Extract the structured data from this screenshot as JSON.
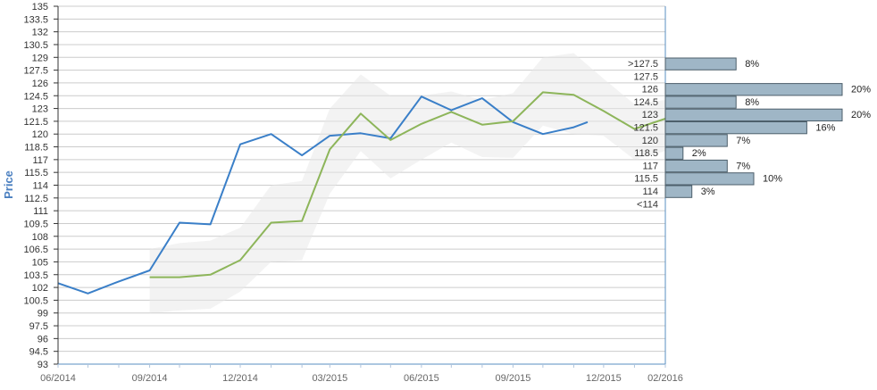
{
  "chart_data": {
    "type": "line",
    "title": "",
    "xlabel": "",
    "ylabel": "Price",
    "ylim": [
      93,
      135
    ],
    "y_ticks": [
      93,
      94.5,
      96,
      97.5,
      99,
      100.5,
      102,
      103.5,
      105,
      106.5,
      108,
      109.5,
      111,
      112.5,
      114,
      115.5,
      117,
      118.5,
      120,
      121.5,
      123,
      124.5,
      126,
      127.5,
      129,
      130.5,
      132,
      133.5,
      135
    ],
    "x_tick_labels": [
      "06/2014",
      "09/2014",
      "12/2014",
      "03/2015",
      "06/2015",
      "09/2015",
      "12/2015",
      "02/2016"
    ],
    "grid": true,
    "colors": {
      "price": "#3a7fc8",
      "average": "#8db55a",
      "band": "#e8e8e8",
      "bar": "#9fb6c6",
      "bar_stroke": "#4d5f6b",
      "grid": "#cccccc",
      "axis": "#5a8fc0",
      "label": "#666666",
      "ylabel": "#4a7fc0"
    },
    "series": [
      {
        "key": "price",
        "x": [
          "2014-06",
          "2014-07",
          "2014-08",
          "2014-09",
          "2014-10",
          "2014-11",
          "2014-12",
          "2015-01",
          "2015-02",
          "2015-03",
          "2015-04",
          "2015-05",
          "2015-06",
          "2015-07",
          "2015-08",
          "2015-09",
          "2015-10",
          "2015-11",
          "2015-11-15"
        ],
        "y": [
          102.5,
          101.3,
          102.7,
          104.0,
          109.6,
          109.4,
          118.8,
          120.0,
          117.5,
          119.8,
          120.1,
          119.5,
          124.4,
          122.8,
          124.2,
          121.4,
          120.0,
          120.8,
          121.4
        ]
      },
      {
        "key": "average",
        "x": [
          "2014-09",
          "2014-10",
          "2014-11",
          "2014-12",
          "2015-01",
          "2015-02",
          "2015-03",
          "2015-04",
          "2015-05",
          "2015-06",
          "2015-07",
          "2015-08",
          "2015-09",
          "2015-10",
          "2015-11",
          "2015-12",
          "2016-01",
          "2016-02"
        ],
        "y": [
          103.2,
          103.2,
          103.5,
          105.2,
          109.6,
          109.8,
          118.2,
          122.4,
          119.3,
          121.2,
          122.6,
          121.1,
          121.5,
          124.9,
          124.6,
          122.7,
          120.6,
          121.8
        ]
      }
    ],
    "band": {
      "x": [
        "2014-09",
        "2014-10",
        "2014-11",
        "2014-12",
        "2015-01",
        "2015-02",
        "2015-03",
        "2015-04",
        "2015-05",
        "2015-06",
        "2015-07",
        "2015-08",
        "2015-09",
        "2015-10",
        "2015-11",
        "2015-12",
        "2016-01",
        "2016-02"
      ],
      "upper": [
        106.5,
        107.2,
        107.5,
        109.0,
        114.0,
        114.5,
        123.0,
        127.0,
        124.5,
        124.5,
        125.0,
        124.0,
        124.8,
        129.0,
        129.5,
        126.5,
        123.5,
        124.0
      ],
      "lower": [
        99.0,
        99.3,
        99.5,
        101.5,
        105.0,
        105.2,
        113.0,
        118.0,
        114.8,
        117.0,
        119.0,
        117.3,
        117.2,
        121.0,
        120.0,
        119.8,
        117.0,
        118.0
      ]
    },
    "distribution": [
      {
        "label": ">127.5",
        "percent": 8,
        "text": "8%"
      },
      {
        "label": "127.5",
        "percent": null,
        "text": ""
      },
      {
        "label": "126",
        "percent": 20,
        "text": "20%"
      },
      {
        "label": "124.5",
        "percent": 8,
        "text": "8%"
      },
      {
        "label": "123",
        "percent": 20,
        "text": "20%"
      },
      {
        "label": "121.5",
        "percent": 16,
        "text": "16%"
      },
      {
        "label": "120",
        "percent": 7,
        "text": "7%"
      },
      {
        "label": "118.5",
        "percent": 2,
        "text": "2%"
      },
      {
        "label": "117",
        "percent": 7,
        "text": "7%"
      },
      {
        "label": "115.5",
        "percent": 10,
        "text": "10%"
      },
      {
        "label": "114",
        "percent": 3,
        "text": "3%"
      },
      {
        "label": "<114",
        "percent": null,
        "text": ""
      }
    ]
  }
}
